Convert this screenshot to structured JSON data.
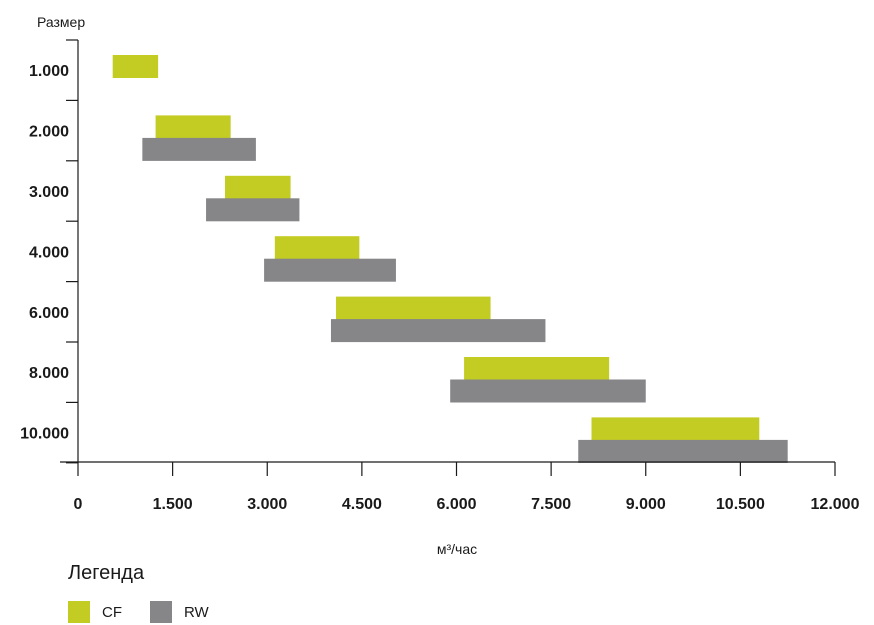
{
  "chart_data": {
    "type": "bar",
    "orientation": "horizontal-range",
    "ylabel": "Размер",
    "xlabel": "м³/час",
    "categories": [
      "1.000",
      "2.000",
      "3.000",
      "4.000",
      "6.000",
      "8.000",
      "10.000"
    ],
    "x_ticks": [
      "0",
      "1.500",
      "3.000",
      "4.500",
      "6.000",
      "7.500",
      "9.000",
      "10.500",
      "12.000"
    ],
    "xlim": [
      0,
      12000
    ],
    "series": [
      {
        "name": "CF",
        "color": "#c3cc23",
        "ranges": [
          [
            550,
            1270
          ],
          [
            1230,
            2420
          ],
          [
            2330,
            3370
          ],
          [
            3120,
            4460
          ],
          [
            4090,
            6540
          ],
          [
            6120,
            8420
          ],
          [
            8140,
            10800
          ]
        ]
      },
      {
        "name": "RW",
        "color": "#868688",
        "ranges": [
          null,
          [
            1020,
            2820
          ],
          [
            2030,
            3510
          ],
          [
            2950,
            5040
          ],
          [
            4010,
            7410
          ],
          [
            5900,
            9000
          ],
          [
            7930,
            11250
          ]
        ]
      }
    ],
    "legend": {
      "title": "Легенда",
      "position": "bottom-left"
    }
  }
}
